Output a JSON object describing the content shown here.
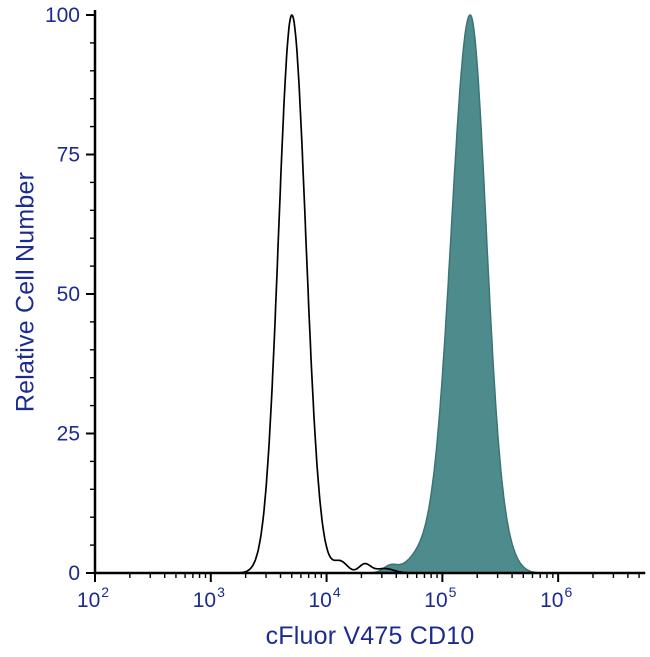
{
  "chart_data": {
    "type": "area",
    "subtype": "flow-cytometry-overlay-histogram",
    "title": "",
    "xlabel": "cFluor V475 CD10",
    "ylabel": "Relative Cell Number",
    "x_scale": "log10",
    "x_log_range": [
      2,
      6.75
    ],
    "ylim": [
      0,
      100
    ],
    "x_ticks": [
      2,
      3,
      4,
      5,
      6
    ],
    "x_tick_base": "10",
    "y_ticks": [
      0,
      25,
      50,
      75,
      100
    ],
    "y_minor_step": 5,
    "grid": false,
    "legend": "none",
    "background": "#FFFFFF",
    "axis_color": "#000000",
    "label_color": "#1C2B8F",
    "series": [
      {
        "name": "filled-histogram-cd10-stained",
        "fill": "#4E8B8D",
        "stroke": "#3C7476",
        "stroke_width": 1.5,
        "peak_x": 170000,
        "peak_y": 100,
        "components": [
          {
            "center": 5.24,
            "sigma_left": 0.165,
            "sigma_right": 0.14,
            "height": 100
          },
          {
            "center": 4.8,
            "sigma": 0.12,
            "height": 2.5
          },
          {
            "center": 4.55,
            "sigma": 0.06,
            "height": 1.2
          },
          {
            "center": 5.55,
            "sigma": 0.1,
            "height": 2.0
          }
        ]
      },
      {
        "name": "open-histogram-negative-control",
        "fill": "none",
        "stroke": "#000000",
        "stroke_width": 1.7,
        "peak_x": 5000,
        "peak_y": 100,
        "components": [
          {
            "center": 3.7,
            "sigma_left": 0.115,
            "sigma_right": 0.12,
            "height": 100
          },
          {
            "center": 4.12,
            "sigma": 0.06,
            "height": 2.0
          },
          {
            "center": 4.33,
            "sigma": 0.05,
            "height": 1.6
          },
          {
            "center": 4.5,
            "sigma": 0.08,
            "height": 0.8
          }
        ]
      }
    ]
  }
}
